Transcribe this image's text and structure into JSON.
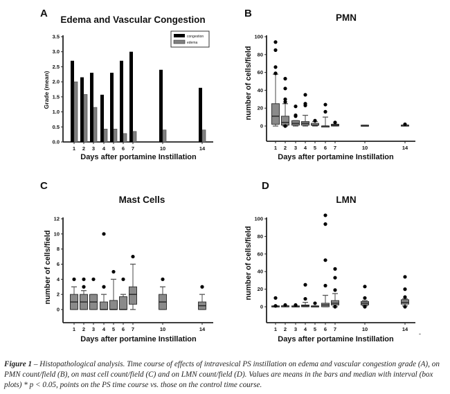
{
  "figure": {
    "caption_label": "Figure 1",
    "caption_text": " – Histopathological analysis. Time course of effects of intravesical PS instillation on edema and vascular congestion grade (A), on PMN count/field (B), on mast cell count/field (C) and on LMN count/field (D). Values are means in the bars and median with interval (box plots) * p < 0.05, points on the PS time course vs. those on the control time course.",
    "stray_mark": "-"
  },
  "chart_data": [
    {
      "panel": "A",
      "type": "bar",
      "title": "Edema and Vascular Congestion",
      "xlabel": "Days after portamine Instillation",
      "ylabel": "Grade (mean)",
      "categories": [
        1,
        2,
        3,
        4,
        5,
        6,
        7,
        10,
        14
      ],
      "ylim": [
        0,
        3.5
      ],
      "yticks": [
        "0.0",
        "0.5",
        "1.0",
        "1.5",
        "2.0",
        "2.5",
        "3.0",
        "3.5"
      ],
      "legend_position": "top-right",
      "series": [
        {
          "name": "congestion",
          "color": "#000000",
          "values": [
            2.7,
            2.15,
            2.3,
            1.57,
            2.3,
            2.7,
            3.0,
            2.4,
            1.8
          ]
        },
        {
          "name": "edema",
          "color": "#808080",
          "values": [
            2.0,
            1.58,
            1.15,
            0.43,
            0.43,
            0.28,
            0.35,
            0.4,
            0.4
          ]
        }
      ]
    },
    {
      "panel": "B",
      "type": "box",
      "title": "PMN",
      "xlabel": "Days after portamine Instillation",
      "ylabel": "number of cells/field",
      "categories": [
        1,
        2,
        3,
        4,
        5,
        6,
        7,
        10,
        14
      ],
      "ylim": [
        -18,
        100
      ],
      "yticks": [
        "0",
        "20",
        "40",
        "60",
        "80",
        "100"
      ],
      "boxes": [
        {
          "day": 1,
          "min": 0,
          "q1": 2,
          "median": 11,
          "q3": 25,
          "max": 58,
          "outliers": [
            59,
            66,
            85,
            94
          ]
        },
        {
          "day": 2,
          "min": 0,
          "q1": 1,
          "median": 4,
          "q3": 11,
          "max": 25,
          "outliers": [
            0,
            27,
            30,
            42,
            53
          ]
        },
        {
          "day": 3,
          "min": 0,
          "q1": 1,
          "median": 3,
          "q3": 6,
          "max": 6,
          "outliers": [
            11,
            12,
            22
          ]
        },
        {
          "day": 4,
          "min": 0,
          "q1": 1,
          "median": 3,
          "q3": 5,
          "max": 12,
          "outliers": [
            23,
            25,
            35
          ]
        },
        {
          "day": 5,
          "min": 0,
          "q1": 1,
          "median": 1,
          "q3": 3,
          "max": 5,
          "outliers": [
            6
          ]
        },
        {
          "day": 6,
          "min": 0,
          "q1": 0,
          "median": 0,
          "q3": 0,
          "max": 10,
          "outliers": [
            16,
            24
          ]
        },
        {
          "day": 7,
          "min": 0,
          "q1": 0,
          "median": 1,
          "q3": 2,
          "max": 2,
          "outliers": [
            4
          ]
        },
        {
          "day": 10,
          "min": 0,
          "q1": 0,
          "median": 0,
          "q3": 1,
          "max": 1,
          "outliers": []
        },
        {
          "day": 14,
          "min": 0,
          "q1": 0,
          "median": 1,
          "q3": 1,
          "max": 1,
          "outliers": [
            2
          ]
        }
      ]
    },
    {
      "panel": "C",
      "type": "box",
      "title": "Mast Cells",
      "xlabel": "Days after portamine Instillation",
      "ylabel": "number of cells/field",
      "categories": [
        1,
        2,
        3,
        4,
        5,
        6,
        7,
        10,
        14
      ],
      "ylim": [
        -1.7,
        12
      ],
      "yticks": [
        "0",
        "2",
        "4",
        "6",
        "8",
        "10",
        "12"
      ],
      "boxes": [
        {
          "day": 1,
          "min": 0,
          "q1": 0,
          "median": 1,
          "q3": 2,
          "max": 3,
          "outliers": [
            4
          ]
        },
        {
          "day": 2,
          "min": 0,
          "q1": 0,
          "median": 1,
          "q3": 2,
          "max": 2.5,
          "outliers": [
            3,
            4
          ]
        },
        {
          "day": 3,
          "min": 0,
          "q1": 0,
          "median": 1,
          "q3": 2,
          "max": 2,
          "outliers": [
            4
          ]
        },
        {
          "day": 4,
          "min": 0,
          "q1": 0,
          "median": 0,
          "q3": 1,
          "max": 2,
          "outliers": [
            3,
            10
          ]
        },
        {
          "day": 5,
          "min": 0,
          "q1": 0,
          "median": 0,
          "q3": 1.2,
          "max": 4,
          "outliers": [
            5
          ]
        },
        {
          "day": 6,
          "min": 0,
          "q1": 0,
          "median": 0,
          "q3": 1.7,
          "max": 2,
          "outliers": [
            4
          ]
        },
        {
          "day": 7,
          "min": 0,
          "q1": 0.7,
          "median": 2,
          "q3": 3,
          "max": 6,
          "outliers": [
            7
          ]
        },
        {
          "day": 10,
          "min": 0,
          "q1": 0,
          "median": 1,
          "q3": 2,
          "max": 3,
          "outliers": [
            4
          ]
        },
        {
          "day": 14,
          "min": 0,
          "q1": 0,
          "median": 0.5,
          "q3": 1,
          "max": 2,
          "outliers": [
            3
          ]
        }
      ]
    },
    {
      "panel": "D",
      "type": "box",
      "title": "LMN",
      "xlabel": "Days after portamine Instillation",
      "ylabel": "number of cells/field",
      "categories": [
        1,
        2,
        3,
        4,
        5,
        6,
        7,
        10,
        14
      ],
      "ylim": [
        -18,
        100
      ],
      "yticks": [
        "0",
        "20",
        "40",
        "60",
        "80",
        "100"
      ],
      "boxes": [
        {
          "day": 1,
          "min": 0,
          "q1": 0,
          "median": 0,
          "q3": 1,
          "max": 1,
          "outliers": [
            1,
            10
          ]
        },
        {
          "day": 2,
          "min": 0,
          "q1": 0,
          "median": 1,
          "q3": 1,
          "max": 1,
          "outliers": [
            2
          ]
        },
        {
          "day": 3,
          "min": 0,
          "q1": 0,
          "median": 0,
          "q3": 1,
          "max": 1,
          "outliers": [
            2
          ]
        },
        {
          "day": 4,
          "min": 0,
          "q1": 0,
          "median": 1,
          "q3": 2,
          "max": 5,
          "outliers": [
            9,
            25
          ]
        },
        {
          "day": 5,
          "min": 0,
          "q1": 0,
          "median": 0,
          "q3": 1,
          "max": 1,
          "outliers": [
            4
          ]
        },
        {
          "day": 6,
          "min": 0,
          "q1": 0,
          "median": 2,
          "q3": 4,
          "max": 13,
          "outliers": [
            24,
            53,
            94,
            104
          ]
        },
        {
          "day": 7,
          "min": 0,
          "q1": 2,
          "median": 4,
          "q3": 7,
          "max": 15,
          "outliers": [
            0,
            19,
            33,
            43
          ]
        },
        {
          "day": 10,
          "min": 1,
          "q1": 2,
          "median": 4,
          "q3": 6,
          "max": 7,
          "outliers": [
            0,
            10,
            23
          ]
        },
        {
          "day": 14,
          "min": 1,
          "q1": 3,
          "median": 5,
          "q3": 8,
          "max": 9,
          "outliers": [
            0,
            11,
            20,
            34
          ]
        }
      ]
    }
  ]
}
